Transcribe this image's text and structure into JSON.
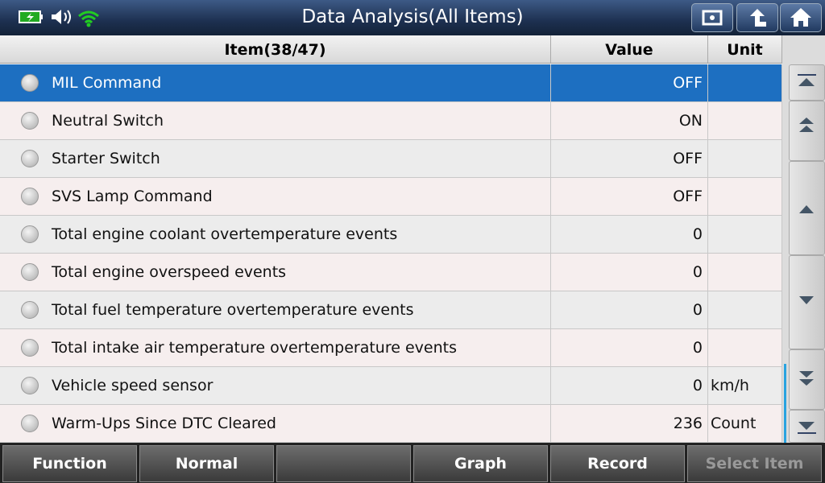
{
  "header": {
    "title": "Data Analysis(All Items)"
  },
  "table": {
    "columns": [
      "Item(38/47)",
      "Value",
      "Unit"
    ],
    "rows": [
      {
        "name": "MIL Command",
        "value": "OFF"
      },
      {
        "name": "Neutral Switch",
        "value": "ON"
      },
      {
        "name": "Starter Switch",
        "value": "OFF"
      },
      {
        "name": "SVS Lamp Command",
        "value": "OFF"
      },
      {
        "name": "Total engine coolant overtemperature events",
        "value": "0"
      },
      {
        "name": "Total engine overspeed events",
        "value": "0"
      },
      {
        "name": "Total fuel temperature overtemperature events",
        "value": "0"
      },
      {
        "name": "Total intake air temperature overtemperature events",
        "value": "0"
      },
      {
        "name": "Vehicle speed sensor",
        "value": "0",
        "unit": "km/h"
      },
      {
        "name": "Warm-Ups Since DTC Cleared",
        "value": "236",
        "unit": "Count"
      }
    ]
  },
  "footer": {
    "buttons": [
      "Function",
      "Normal",
      "Graph",
      "Record",
      "Select Item"
    ]
  }
}
